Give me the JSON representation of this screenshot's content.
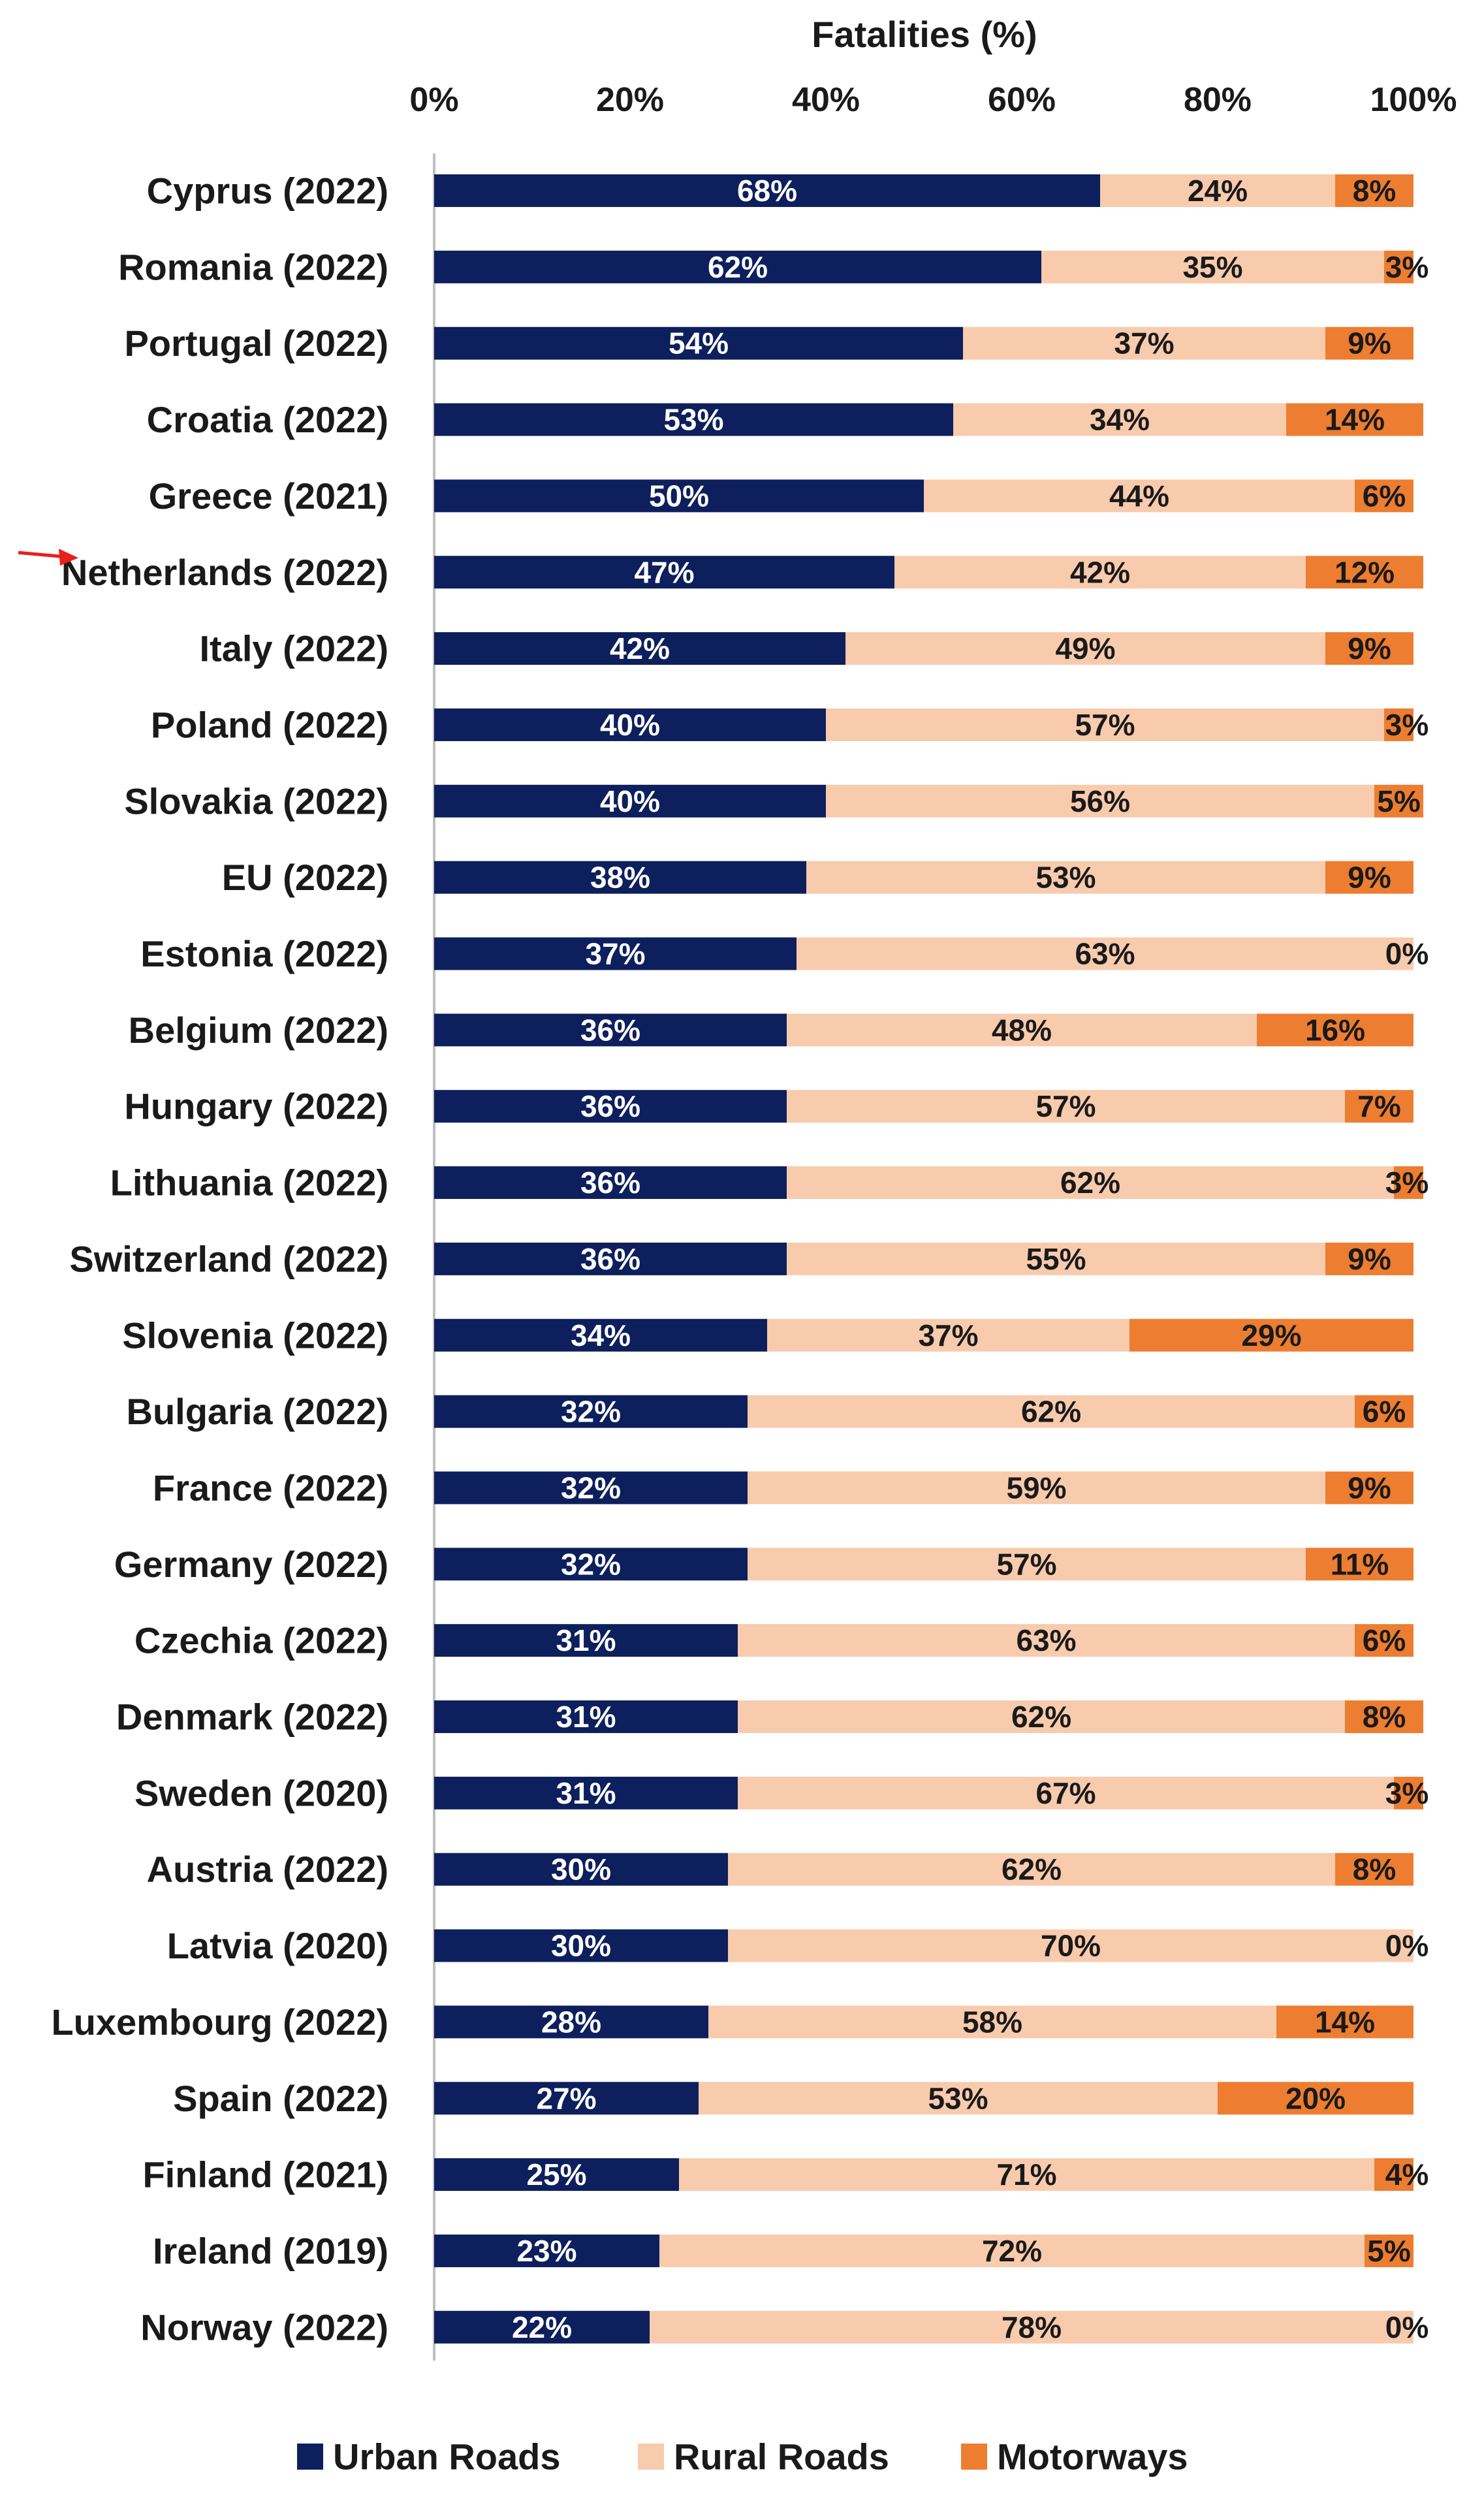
{
  "chart_data": {
    "type": "bar",
    "orientation": "horizontal",
    "stacked": true,
    "title": "Fatalities (%)",
    "xlabel": "Fatalities (%)",
    "ylabel": "",
    "xlim": [
      0,
      100
    ],
    "x_ticks": [
      "0%",
      "20%",
      "40%",
      "60%",
      "80%",
      "100%"
    ],
    "grid": false,
    "legend_position": "bottom",
    "categories": [
      "Cyprus (2022)",
      "Romania (2022)",
      "Portugal (2022)",
      "Croatia (2022)",
      "Greece (2021)",
      "Netherlands (2022)",
      "Italy (2022)",
      "Poland (2022)",
      "Slovakia (2022)",
      "EU (2022)",
      "Estonia (2022)",
      "Belgium (2022)",
      "Hungary (2022)",
      "Lithuania (2022)",
      "Switzerland (2022)",
      "Slovenia (2022)",
      "Bulgaria (2022)",
      "France (2022)",
      "Germany (2022)",
      "Czechia (2022)",
      "Denmark (2022)",
      "Sweden (2020)",
      "Austria (2022)",
      "Latvia (2020)",
      "Luxembourg (2022)",
      "Spain (2022)",
      "Finland (2021)",
      "Ireland (2019)",
      "Norway (2022)"
    ],
    "series": [
      {
        "name": "Urban Roads",
        "color": "#0d1f5c",
        "label_color": "#ffffff",
        "values": [
          68,
          62,
          54,
          53,
          50,
          47,
          42,
          40,
          40,
          38,
          37,
          36,
          36,
          36,
          36,
          34,
          32,
          32,
          32,
          31,
          31,
          31,
          30,
          30,
          28,
          27,
          25,
          23,
          22
        ]
      },
      {
        "name": "Rural Roads",
        "color": "#f8cbad",
        "label_color": "#1a1a1a",
        "values": [
          24,
          35,
          37,
          34,
          44,
          42,
          49,
          57,
          56,
          53,
          63,
          48,
          57,
          62,
          55,
          37,
          62,
          59,
          57,
          63,
          62,
          67,
          62,
          70,
          58,
          53,
          71,
          72,
          78
        ]
      },
      {
        "name": "Motorways",
        "color": "#ed7d31",
        "label_color": "#1a1a1a",
        "values": [
          8,
          3,
          9,
          14,
          6,
          12,
          9,
          3,
          5,
          9,
          0,
          16,
          7,
          3,
          9,
          29,
          6,
          9,
          11,
          6,
          8,
          3,
          8,
          0,
          14,
          20,
          4,
          5,
          0
        ]
      }
    ],
    "data_labels": [
      [
        "68%",
        "24%",
        "8%"
      ],
      [
        "62%",
        "35%",
        "3%"
      ],
      [
        "54%",
        "37%",
        "9%"
      ],
      [
        "53%",
        "34%",
        "14%"
      ],
      [
        "50%",
        "44%",
        "6%"
      ],
      [
        "47%",
        "42%",
        "12%"
      ],
      [
        "42%",
        "49%",
        "9%"
      ],
      [
        "40%",
        "57%",
        "3%"
      ],
      [
        "40%",
        "56%",
        "5%"
      ],
      [
        "38%",
        "53%",
        "9%"
      ],
      [
        "37%",
        "63%",
        "0%"
      ],
      [
        "36%",
        "48%",
        "16%"
      ],
      [
        "36%",
        "57%",
        "7%"
      ],
      [
        "36%",
        "62%",
        "3%"
      ],
      [
        "36%",
        "55%",
        "9%"
      ],
      [
        "34%",
        "37%",
        "29%"
      ],
      [
        "32%",
        "62%",
        "6%"
      ],
      [
        "32%",
        "59%",
        "9%"
      ],
      [
        "32%",
        "57%",
        "11%"
      ],
      [
        "31%",
        "63%",
        "6%"
      ],
      [
        "31%",
        "62%",
        "8%"
      ],
      [
        "31%",
        "67%",
        "3%"
      ],
      [
        "30%",
        "62%",
        "8%"
      ],
      [
        "30%",
        "70%",
        "0%"
      ],
      [
        "28%",
        "58%",
        "14%"
      ],
      [
        "27%",
        "53%",
        "20%"
      ],
      [
        "25%",
        "71%",
        "4%"
      ],
      [
        "23%",
        "72%",
        "5%"
      ],
      [
        "22%",
        "78%",
        "0%"
      ]
    ],
    "annotations": [
      {
        "type": "arrow",
        "color": "#e8201c",
        "target_category": "Netherlands (2022)"
      }
    ]
  }
}
